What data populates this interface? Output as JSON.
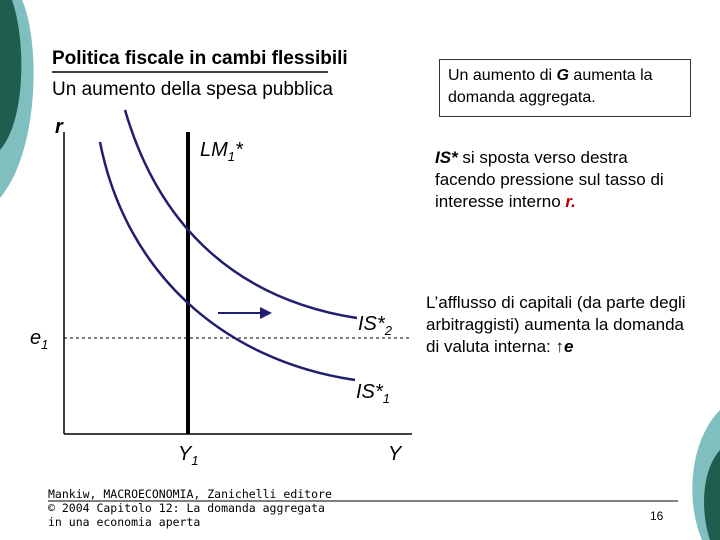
{
  "slide": {
    "title": "Politica fiscale in cambi flessibili",
    "subtitle": "Un aumento della spesa pubblica",
    "box": {
      "text_before": "Un aumento di ",
      "emph": "G",
      "text_after": " aumenta la domanda aggregata."
    },
    "note1": {
      "emph": "IS*",
      "text": " si sposta verso destra facendo pressione sul tasso di interesse interno ",
      "emph_red": "r."
    },
    "note2": {
      "text": "L’afflusso di capitali (da parte degli arbitraggisti) aumenta la domanda di valuta interna: ",
      "arrow": "↑",
      "emph": "e"
    },
    "footer": "Mankiw, MACROECONOMIA, Zanichelli editore © 2004 Capitolo 12: La domanda aggregata in una economia aperta",
    "page_number": "16"
  },
  "diagram": {
    "y_axis_label": "r",
    "x_axis_label": "Y",
    "lm_label": "LM",
    "lm_sub": "1",
    "lm_sup": "*",
    "is2_label": "IS*",
    "is2_sub": "2",
    "is1_label": "IS*",
    "is1_sub": "1",
    "e_label": "e",
    "e_sub": "1",
    "y1_label": "Y",
    "y1_sub": "1",
    "colors": {
      "is_curves": "#1f1f6e",
      "axes": "#000000",
      "arrow": "#1f1f6e",
      "accent": "#c00000",
      "deco_teal": "#7fbfbf",
      "deco_green": "#1f5e4e"
    }
  }
}
